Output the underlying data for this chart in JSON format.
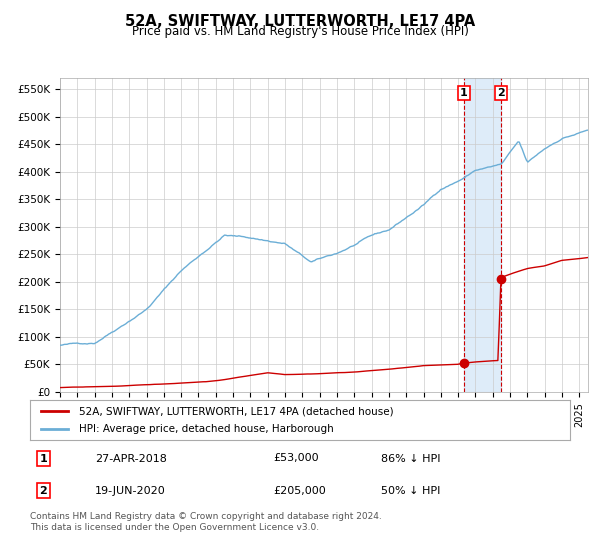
{
  "title": "52A, SWIFTWAY, LUTTERWORTH, LE17 4PA",
  "subtitle": "Price paid vs. HM Land Registry's House Price Index (HPI)",
  "xlabel": "",
  "ylabel": "",
  "ylim": [
    0,
    570000
  ],
  "yticks": [
    0,
    50000,
    100000,
    150000,
    200000,
    250000,
    300000,
    350000,
    400000,
    450000,
    500000,
    550000
  ],
  "ytick_labels": [
    "£0",
    "£50K",
    "£100K",
    "£150K",
    "£200K",
    "£250K",
    "£300K",
    "£350K",
    "£400K",
    "£450K",
    "£500K",
    "£550K"
  ],
  "hpi_color": "#6baed6",
  "price_color": "#cc0000",
  "event1_date_year": 2018.32,
  "event2_date_year": 2020.47,
  "event1_price": 53000,
  "event2_price": 205000,
  "event1_label": "1",
  "event2_label": "2",
  "legend_entry1": "52A, SWIFTWAY, LUTTERWORTH, LE17 4PA (detached house)",
  "legend_entry2": "HPI: Average price, detached house, Harborough",
  "table_row1": [
    "1",
    "27-APR-2018",
    "£53,000",
    "86% ↓ HPI"
  ],
  "table_row2": [
    "2",
    "19-JUN-2020",
    "£205,000",
    "50% ↓ HPI"
  ],
  "footer": "Contains HM Land Registry data © Crown copyright and database right 2024.\nThis data is licensed under the Open Government Licence v3.0.",
  "background_color": "#ffffff",
  "grid_color": "#cccccc",
  "shade_color": "#d0e4f7"
}
